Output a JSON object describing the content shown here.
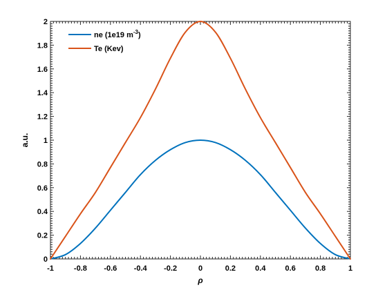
{
  "chart_data": {
    "type": "line",
    "title": "",
    "xlabel": "ρ",
    "ylabel": "a.u.",
    "xlim": [
      -1,
      1
    ],
    "ylim": [
      0,
      2
    ],
    "grid": false,
    "legend_position": "top-left",
    "x_ticks": [
      "-1",
      "-0.8",
      "-0.6",
      "-0.4",
      "-0.2",
      "0",
      "0.2",
      "0.4",
      "0.6",
      "0.8",
      "1"
    ],
    "y_ticks": [
      "0",
      "0.2",
      "0.4",
      "0.6",
      "0.8",
      "1",
      "1.2",
      "1.4",
      "1.6",
      "1.8",
      "2"
    ],
    "x": [
      -1,
      -0.9,
      -0.8,
      -0.7,
      -0.6,
      -0.5,
      -0.4,
      -0.3,
      -0.2,
      -0.1,
      0,
      0.1,
      0.2,
      0.3,
      0.4,
      0.5,
      0.6,
      0.7,
      0.8,
      0.9,
      1
    ],
    "series": [
      {
        "name": "ne (1e19 m",
        "name_superscript": "-3",
        "name_suffix": ")",
        "color": "#0072BD",
        "values": [
          0,
          0.036,
          0.13,
          0.26,
          0.41,
          0.56,
          0.71,
          0.83,
          0.92,
          0.98,
          1.0,
          0.98,
          0.92,
          0.83,
          0.71,
          0.56,
          0.41,
          0.26,
          0.13,
          0.036,
          0
        ]
      },
      {
        "name": "Te (Kev)",
        "color": "#D95319",
        "values": [
          0,
          0.19,
          0.38,
          0.56,
          0.77,
          0.98,
          1.19,
          1.43,
          1.69,
          1.91,
          2.0,
          1.91,
          1.69,
          1.43,
          1.19,
          0.98,
          0.77,
          0.56,
          0.38,
          0.19,
          0
        ]
      }
    ]
  }
}
